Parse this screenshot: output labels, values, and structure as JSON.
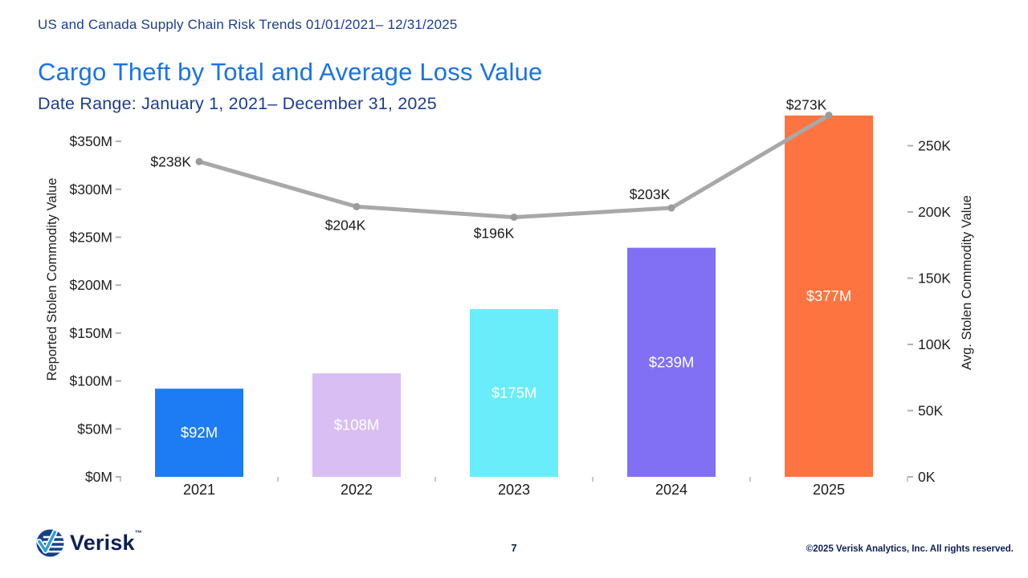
{
  "page": {
    "report_line": "US and Canada Supply Chain Risk Trends 01/01/2021– 12/31/2025",
    "title": "Cargo Theft by Total and Average Loss Value",
    "subtitle": "Date Range: January 1, 2021– December 31, 2025",
    "page_number": "7",
    "copyright": "©2025 Verisk Analytics, Inc. All rights reserved.",
    "logo_text": "Verisk",
    "logo_tm": "™"
  },
  "colors": {
    "report_line": "#1c3e94",
    "title": "#1a73e8",
    "subtitle": "#1c3e94",
    "footer_text": "#0e1f56",
    "logo_navy": "#15418c",
    "logo_check": "#2f9fe0",
    "axis_text": "#212121",
    "tick_mark": "#b0b0b0",
    "line": "#a8a8a8",
    "point": "#9b9b9b",
    "bar_label": "#ffffff",
    "bars": [
      "#1d7cf4",
      "#d9bef4",
      "#69edfa",
      "#8170f4",
      "#fd7440"
    ]
  },
  "chart_data": {
    "type": "bar",
    "categories": [
      "2021",
      "2022",
      "2023",
      "2024",
      "2025"
    ],
    "series": [
      {
        "name": "Reported Stolen Commodity Value",
        "type": "bar",
        "axis": "left",
        "unit": "millions USD",
        "values": [
          92,
          108,
          175,
          239,
          377
        ],
        "labels": [
          "$92M",
          "$108M",
          "$175M",
          "$239M",
          "$377M"
        ]
      },
      {
        "name": "Avg. Stolen Commodity Value",
        "type": "line",
        "axis": "right",
        "unit": "thousands USD",
        "values": [
          238,
          204,
          196,
          203,
          273
        ],
        "labels": [
          "$238K",
          "$204K",
          "$196K",
          "$203K",
          "$273K"
        ]
      }
    ],
    "left_axis": {
      "title": "Reported Stolen Commodity Value",
      "ticks": [
        "$0M",
        "$50M",
        "$100M",
        "$150M",
        "$200M",
        "$250M",
        "$300M",
        "$350M"
      ],
      "min": 0,
      "max": 350,
      "step": 50
    },
    "right_axis": {
      "title": "Avg. Stolen Commodity Value",
      "ticks": [
        "0K",
        "50K",
        "100K",
        "150K",
        "200K",
        "250K"
      ],
      "min": 0,
      "max": 250,
      "step": 50
    },
    "grid": false,
    "legend": "none"
  }
}
